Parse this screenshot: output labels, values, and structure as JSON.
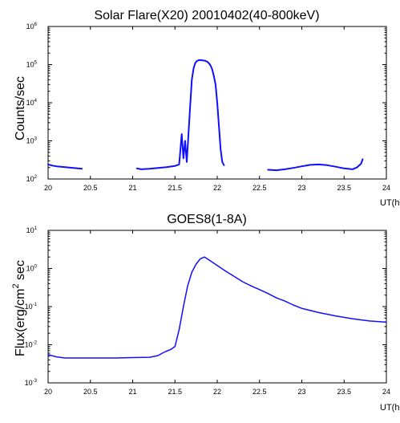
{
  "colors": {
    "series": "#1010ff",
    "axes": "#000000",
    "background": "#ffffff"
  },
  "chart_data": [
    {
      "type": "line",
      "title": "Solar Flare(X20) 20010402(40-800keV)",
      "xlabel": "UT(h)",
      "ylabel": "Counts/sec",
      "xlim": [
        20,
        24
      ],
      "ylim_exp": [
        2,
        6
      ],
      "yscale": "log",
      "grid": false,
      "x_ticks": [
        "20",
        "20.5",
        "21",
        "21.5",
        "22",
        "22.5",
        "23",
        "23.5",
        "24"
      ],
      "y_ticks": [
        {
          "base": "10",
          "exp": "2"
        },
        {
          "base": "10",
          "exp": "3"
        },
        {
          "base": "10",
          "exp": "4"
        },
        {
          "base": "10",
          "exp": "5"
        },
        {
          "base": "10",
          "exp": "6"
        }
      ],
      "series": [
        {
          "segments": [
            {
              "x": [
                20.0,
                20.05,
                20.1,
                20.15,
                20.2,
                20.25,
                20.3,
                20.35,
                20.4
              ],
              "y": [
                240,
                225,
                215,
                210,
                205,
                200,
                195,
                190,
                185
              ]
            },
            {
              "x": [
                21.05,
                21.1,
                21.2,
                21.3,
                21.4,
                21.5,
                21.55,
                21.58,
                21.6,
                21.62,
                21.64,
                21.66,
                21.68,
                21.7,
                21.72,
                21.74,
                21.76,
                21.78,
                21.8,
                21.82,
                21.84,
                21.86,
                21.88,
                21.9,
                21.92,
                21.94,
                21.96,
                21.98,
                22.0,
                22.02,
                22.04,
                22.06,
                22.08
              ],
              "y": [
                190,
                180,
                185,
                195,
                205,
                220,
                240,
                1500,
                350,
                1000,
                280,
                1500,
                8000,
                40000,
                80000,
                110000,
                125000,
                130000,
                132000,
                130000,
                128000,
                125000,
                120000,
                110000,
                95000,
                75000,
                50000,
                30000,
                10000,
                2500,
                600,
                280,
                230
              ]
            },
            {
              "x": [
                22.6,
                22.7,
                22.8,
                22.9,
                23.0,
                23.1,
                23.2,
                23.3,
                23.4,
                23.5,
                23.6,
                23.65,
                23.7,
                23.72
              ],
              "y": [
                175,
                170,
                180,
                195,
                215,
                235,
                240,
                230,
                210,
                190,
                180,
                200,
                250,
                330
              ]
            }
          ]
        }
      ]
    },
    {
      "type": "line",
      "title": "GOES8(1-8A)",
      "xlabel": "UT(h)",
      "ylabel_parts": [
        "Flux(erg/cm",
        "2",
        " sec"
      ],
      "xlim": [
        20,
        24
      ],
      "ylim_exp": [
        -3,
        1
      ],
      "yscale": "log",
      "grid": false,
      "x_ticks": [
        "20",
        "20.5",
        "21",
        "21.5",
        "22",
        "22.5",
        "23",
        "23.5",
        "24"
      ],
      "y_ticks": [
        {
          "base": "10",
          "exp": "-3"
        },
        {
          "base": "10",
          "exp": "-2"
        },
        {
          "base": "10",
          "exp": "-1"
        },
        {
          "base": "10",
          "exp": "0"
        },
        {
          "base": "10",
          "exp": "1"
        }
      ],
      "series": [
        {
          "segments": [
            {
              "x": [
                20.0,
                20.1,
                20.2,
                20.4,
                20.6,
                20.8,
                21.0,
                21.2,
                21.3,
                21.35,
                21.4,
                21.45,
                21.5,
                21.55,
                21.6,
                21.65,
                21.7,
                21.75,
                21.8,
                21.85,
                21.9,
                22.0,
                22.1,
                22.2,
                22.3,
                22.4,
                22.5,
                22.6,
                22.7,
                22.8,
                22.9,
                23.0,
                23.2,
                23.4,
                23.6,
                23.8,
                24.0
              ],
              "y": [
                0.0055,
                0.0048,
                0.0045,
                0.0045,
                0.0045,
                0.0045,
                0.0046,
                0.0047,
                0.0052,
                0.006,
                0.0068,
                0.0075,
                0.009,
                0.025,
                0.1,
                0.35,
                0.8,
                1.3,
                1.8,
                2.0,
                1.7,
                1.2,
                0.85,
                0.62,
                0.45,
                0.35,
                0.28,
                0.22,
                0.17,
                0.14,
                0.11,
                0.09,
                0.07,
                0.057,
                0.048,
                0.042,
                0.039
              ]
            }
          ]
        }
      ]
    }
  ]
}
